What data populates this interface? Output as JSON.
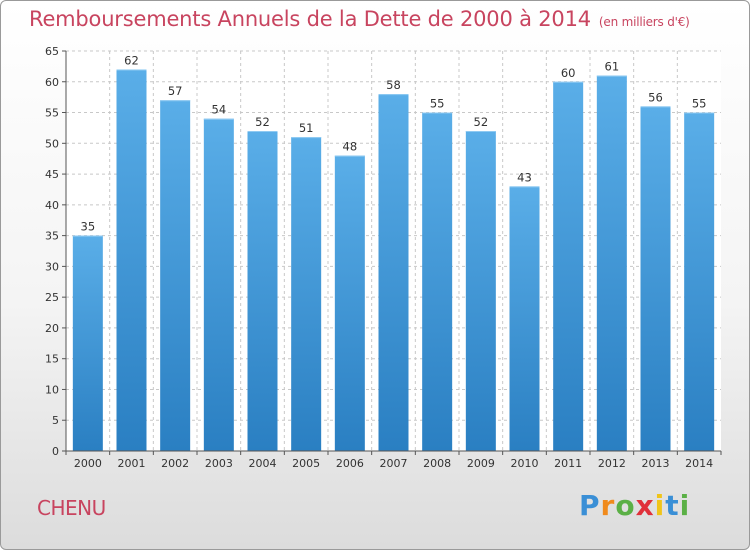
{
  "title": {
    "main": "Remboursements Annuels de la Dette de 2000 à 2014",
    "unit": "(en milliers d'€)"
  },
  "commune": "CHENU",
  "logo": {
    "text": "Proxiti",
    "letters": [
      {
        "ch": "P",
        "color": "#3a8fd6"
      },
      {
        "ch": "r",
        "color": "#f08a1c"
      },
      {
        "ch": "o",
        "color": "#5bb046"
      },
      {
        "ch": "x",
        "color": "#e0303a"
      },
      {
        "ch": "i",
        "color": "#f0c419"
      },
      {
        "ch": "t",
        "color": "#3a8fd6"
      },
      {
        "ch": "i",
        "color": "#5bb046"
      }
    ]
  },
  "colors": {
    "bar_top": "#5aaee8",
    "bar_bottom": "#2a7fc2",
    "title": "#c8445f",
    "grid": "#c8c8c8"
  },
  "chart_data": {
    "type": "bar",
    "categories": [
      "2000",
      "2001",
      "2002",
      "2003",
      "2004",
      "2005",
      "2006",
      "2007",
      "2008",
      "2009",
      "2010",
      "2011",
      "2012",
      "2013",
      "2014"
    ],
    "values": [
      35,
      62,
      57,
      54,
      52,
      51,
      48,
      58,
      55,
      52,
      43,
      60,
      61,
      56,
      55
    ],
    "data_labels": [
      "35",
      "62",
      "57",
      "54",
      "52",
      "51",
      "48",
      "58",
      "55",
      "52",
      "43",
      "60",
      "61",
      "56",
      "55"
    ],
    "ylim": [
      0,
      65
    ],
    "yticks": [
      0,
      5,
      10,
      15,
      20,
      25,
      30,
      35,
      40,
      45,
      50,
      55,
      60,
      65
    ],
    "grid": true,
    "xlabel": "",
    "ylabel": ""
  }
}
